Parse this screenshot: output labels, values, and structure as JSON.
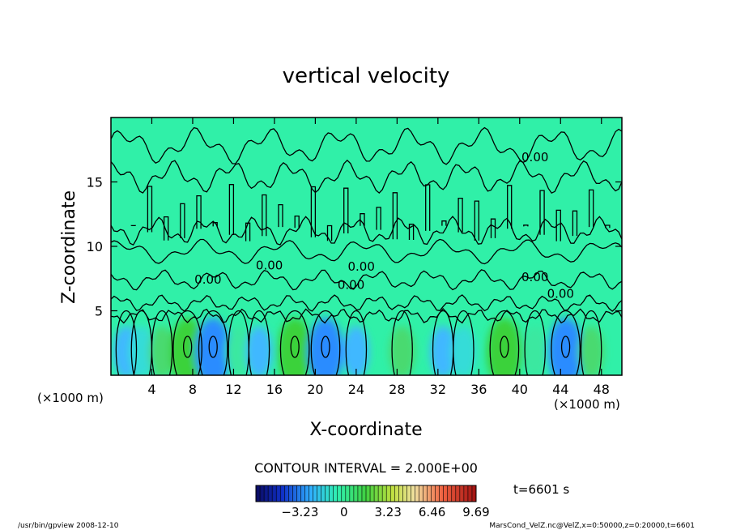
{
  "chart_data": {
    "type": "heatmap",
    "title": "vertical velocity",
    "xlabel": "X-coordinate",
    "ylabel": "Z-coordinate",
    "x_unit_left": "(×1000 m)",
    "x_unit_right": "(×1000 m)",
    "xlim": [
      0,
      50
    ],
    "ylim": [
      0,
      20
    ],
    "x_ticks": [
      4,
      8,
      12,
      16,
      20,
      24,
      28,
      32,
      36,
      40,
      44,
      48
    ],
    "y_ticks": [
      5,
      10,
      15
    ],
    "contour_interval_text": "CONTOUR INTERVAL = 2.000E+00",
    "time_text": "t=6601 s",
    "colorbar": {
      "min": -6.46,
      "max": 9.69,
      "ticks": [
        -3.23,
        0,
        3.23,
        6.46,
        9.69
      ],
      "tick_labels": [
        "−3.23",
        "0",
        "3.23",
        "6.46",
        "9.69"
      ]
    },
    "contour_labels": [
      {
        "text": "0.00",
        "x": 41.5,
        "z": 16.6
      },
      {
        "text": "0.00",
        "x": 9.5,
        "z": 7.1
      },
      {
        "text": "0.00",
        "x": 15.5,
        "z": 8.2
      },
      {
        "text": "0.00",
        "x": 24.5,
        "z": 8.1
      },
      {
        "text": "0.00",
        "x": 23.5,
        "z": 6.7
      },
      {
        "text": "0.00",
        "x": 41.5,
        "z": 7.3
      },
      {
        "text": "0.00",
        "x": 44.0,
        "z": 6.0
      }
    ],
    "field_bottom_layer": [
      {
        "x": 1.5,
        "value": -2.0
      },
      {
        "x": 3.0,
        "value": -1.0
      },
      {
        "x": 5.0,
        "value": 1.5
      },
      {
        "x": 7.5,
        "value": 3.0
      },
      {
        "x": 10.0,
        "value": -3.0
      },
      {
        "x": 12.5,
        "value": 1.2
      },
      {
        "x": 14.5,
        "value": -2.0
      },
      {
        "x": 18.0,
        "value": 3.5
      },
      {
        "x": 21.0,
        "value": -3.0
      },
      {
        "x": 24.0,
        "value": -1.5
      },
      {
        "x": 28.5,
        "value": 2.0
      },
      {
        "x": 32.5,
        "value": -2.0
      },
      {
        "x": 34.5,
        "value": -1.0
      },
      {
        "x": 38.5,
        "value": 3.0
      },
      {
        "x": 41.5,
        "value": 1.0
      },
      {
        "x": 44.5,
        "value": -3.0
      },
      {
        "x": 47.0,
        "value": 2.0
      }
    ],
    "grid": false
  },
  "footer": {
    "left": "/usr/bin/gpview   2008-12-10",
    "right": "MarsCond_VelZ.nc@VelZ,x=0:50000,z=0:20000,t=6601"
  }
}
